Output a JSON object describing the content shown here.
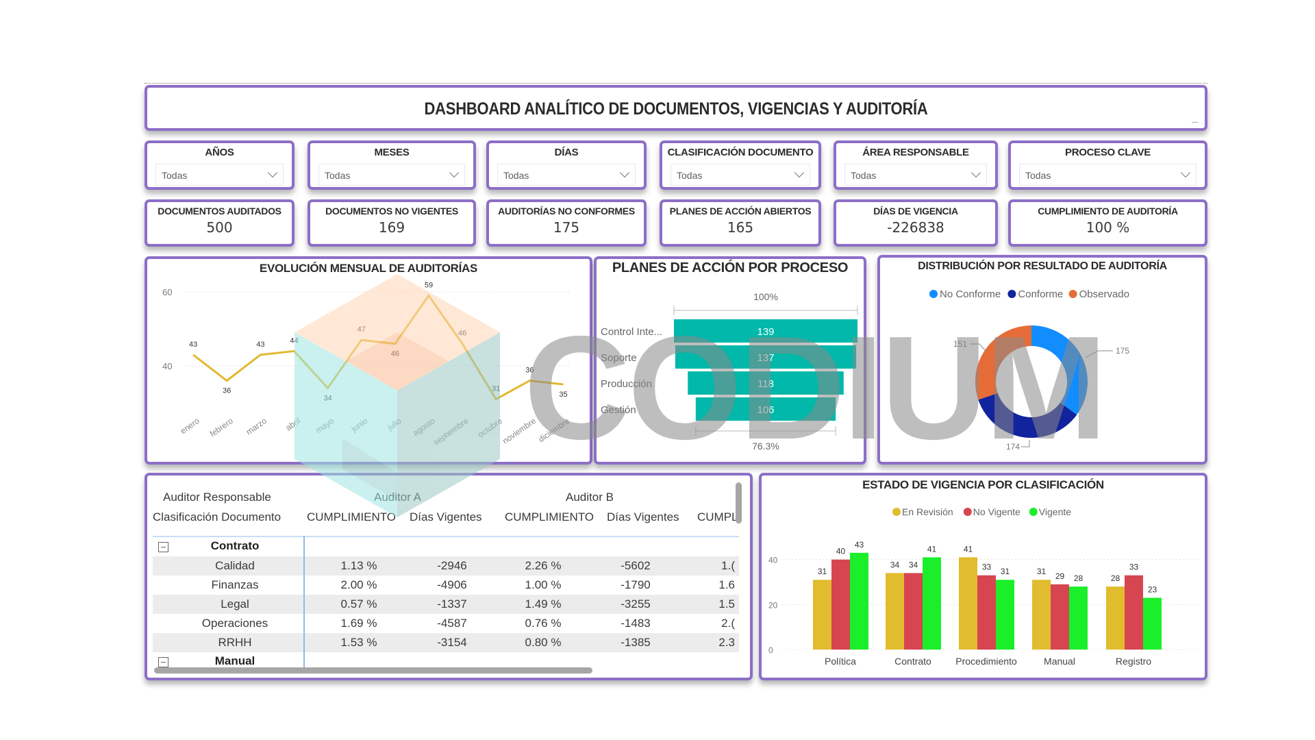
{
  "header": {
    "title": "DASHBOARD ANALÍTICO DE DOCUMENTOS, VIGENCIAS Y AUDITORÍA"
  },
  "slicers": [
    {
      "label": "AÑOS",
      "value": "Todas"
    },
    {
      "label": "MESES",
      "value": "Todas"
    },
    {
      "label": "DÍAS",
      "value": "Todas"
    },
    {
      "label": "CLASIFICACIÓN DOCUMENTO",
      "value": "Todas"
    },
    {
      "label": "ÁREA RESPONSABLE",
      "value": "Todas"
    },
    {
      "label": "PROCESO CLAVE",
      "value": "Todas"
    }
  ],
  "kpis": [
    {
      "label": "DOCUMENTOS AUDITADOS",
      "value": "500"
    },
    {
      "label": "DOCUMENTOS NO VIGENTES",
      "value": "169"
    },
    {
      "label": "AUDITORÍAS NO CONFORMES",
      "value": "175"
    },
    {
      "label": "PLANES DE ACCIÓN ABIERTOS",
      "value": "165"
    },
    {
      "label": "DÍAS DE VIGENCIA",
      "value": "-226838"
    },
    {
      "label": "CUMPLIMIENTO DE AUDITORÍA",
      "value": "100 %"
    }
  ],
  "watermark": {
    "text": "CODIUM"
  },
  "chart_data": [
    {
      "type": "line",
      "title": "EVOLUCIÓN MENSUAL DE AUDITORÍAS",
      "categories": [
        "enero",
        "febrero",
        "marzo",
        "abril",
        "mayo",
        "junio",
        "julio",
        "agosto",
        "septiembre",
        "octubre",
        "noviembre",
        "diciembre"
      ],
      "values": [
        43,
        36,
        43,
        44,
        34,
        47,
        46,
        59,
        46,
        31,
        36,
        35
      ],
      "yticks": [
        40,
        60
      ],
      "ylim": [
        25,
        62
      ],
      "color": "#e1b931",
      "grid": true
    },
    {
      "type": "funnel",
      "title": "PLANES DE ACCIÓN POR PROCESO",
      "categories": [
        "Control Inte...",
        "Soporte",
        "Producción",
        "Gestión"
      ],
      "values": [
        139,
        137,
        118,
        106
      ],
      "top_label": "100%",
      "bottom_label": "76.3%",
      "color": "#01b8aa"
    },
    {
      "type": "donut",
      "title": "DISTRIBUCIÓN POR RESULTADO DE AUDITORÍA",
      "categories": [
        "No Conforme",
        "Conforme",
        "Observado"
      ],
      "values": [
        175,
        174,
        151
      ],
      "colors": [
        "#118dff",
        "#12239e",
        "#e66c37"
      ]
    },
    {
      "type": "bar",
      "title": "ESTADO DE VIGENCIA POR CLASIFICACIÓN",
      "categories": [
        "Política",
        "Contrato",
        "Procedimiento",
        "Manual",
        "Registro"
      ],
      "series": [
        {
          "name": "En Revisión",
          "values": [
            31,
            34,
            41,
            31,
            28
          ],
          "color": "#e0bc2e"
        },
        {
          "name": "No Vigente",
          "values": [
            40,
            34,
            33,
            29,
            33
          ],
          "color": "#d64550"
        },
        {
          "name": "Vigente",
          "values": [
            43,
            41,
            31,
            28,
            23
          ],
          "color": "#1aef2a"
        }
      ],
      "yticks": [
        0,
        20,
        40
      ],
      "ylim": [
        0,
        45
      ],
      "legend_position": "top"
    }
  ],
  "matrix": {
    "row_header_1": "Auditor Responsable",
    "row_header_2": "Clasificación Documento",
    "column_groups": [
      "Auditor A",
      "Auditor B"
    ],
    "measures": [
      "CUMPLIMIENTO",
      "Días Vigentes",
      "CUMPLIMIENTO",
      "Días Vigentes",
      "CUMPL"
    ],
    "groups": [
      {
        "name": "Contrato",
        "rows": [
          {
            "label": "Calidad",
            "cells": [
              "1.13 %",
              "-2946",
              "2.26 %",
              "-5602",
              "1.("
            ]
          },
          {
            "label": "Finanzas",
            "cells": [
              "2.00 %",
              "-4906",
              "1.00 %",
              "-1790",
              "1.6"
            ]
          },
          {
            "label": "Legal",
            "cells": [
              "0.57 %",
              "-1337",
              "1.49 %",
              "-3255",
              "1.5"
            ]
          },
          {
            "label": "Operaciones",
            "cells": [
              "1.69 %",
              "-4587",
              "0.76 %",
              "-1483",
              "2.("
            ]
          },
          {
            "label": "RRHH",
            "cells": [
              "1.53 %",
              "-3154",
              "0.80 %",
              "-1385",
              "2.3"
            ]
          }
        ]
      },
      {
        "name": "Manual",
        "rows": []
      }
    ]
  }
}
